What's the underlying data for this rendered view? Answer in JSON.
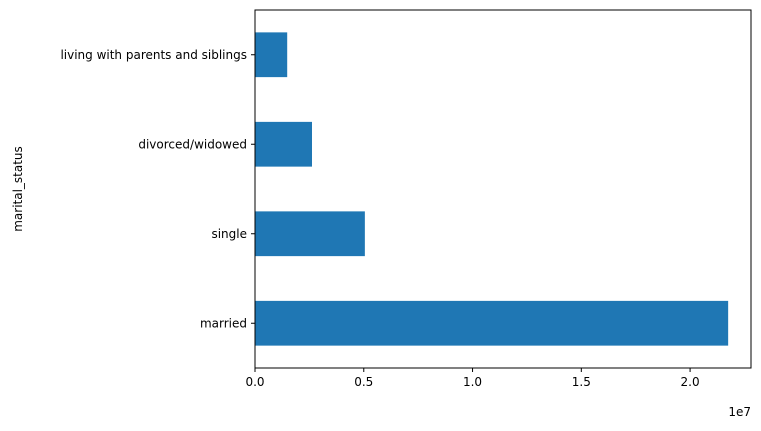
{
  "chart_data": {
    "type": "bar",
    "orientation": "horizontal",
    "categories": [
      "married",
      "single",
      "divorced/widowed",
      "living with parents and siblings"
    ],
    "values": [
      21750000,
      5050000,
      2620000,
      1480000
    ],
    "bar_color": "#1f77b4",
    "ylabel": "marital_status",
    "xlim": [
      0,
      22800000
    ],
    "x_ticks": [
      0,
      5000000,
      10000000,
      15000000,
      20000000
    ],
    "x_tick_labels": [
      "0.0",
      "0.5",
      "1.0",
      "1.5",
      "2.0"
    ],
    "x_offset_label": "1e7",
    "grid": false
  }
}
